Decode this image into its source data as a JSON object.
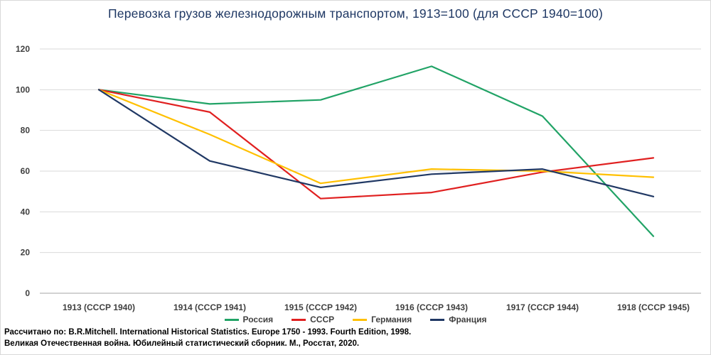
{
  "title": "Перевозка грузов железнодорожным транспортом, 1913=100 (для СССР 1940=100)",
  "footer": {
    "line1": "Рассчитано по: B.R.Mitchell. International Historical Statistics. Europe 1750 - 1993. Fourth Edition, 1998.",
    "line2": "Великая Отечественная война. Юбилейный статистический сборник. М., Росстат, 2020."
  },
  "chart_data": {
    "type": "line",
    "title": "Перевозка грузов железнодорожным транспортом, 1913=100 (для СССР 1940=100)",
    "categories": [
      "1913 (СССР 1940)",
      "1914 (СССР 1941)",
      "1915 (СССР 1942)",
      "1916 (СССР 1943)",
      "1917 (СССР 1944)",
      "1918 (СССР 1945)"
    ],
    "series": [
      {
        "name": "Россия",
        "color": "#21A366",
        "values": [
          100,
          93,
          95,
          111.5,
          87,
          28
        ]
      },
      {
        "name": "СССР",
        "color": "#E02020",
        "values": [
          100,
          89,
          46.5,
          49.5,
          59.5,
          66.5
        ]
      },
      {
        "name": "Германия",
        "color": "#FFC000",
        "values": [
          100,
          78,
          54,
          61,
          60,
          57
        ]
      },
      {
        "name": "Франция",
        "color": "#203864",
        "values": [
          100,
          65,
          52,
          58.5,
          61,
          47.5
        ]
      }
    ],
    "xlabel": "",
    "ylabel": "",
    "ylim": [
      0,
      120
    ],
    "ytick_step": 20,
    "yticks": [
      0,
      20,
      40,
      60,
      80,
      100,
      120
    ],
    "grid": true,
    "legend_position": "bottom"
  }
}
